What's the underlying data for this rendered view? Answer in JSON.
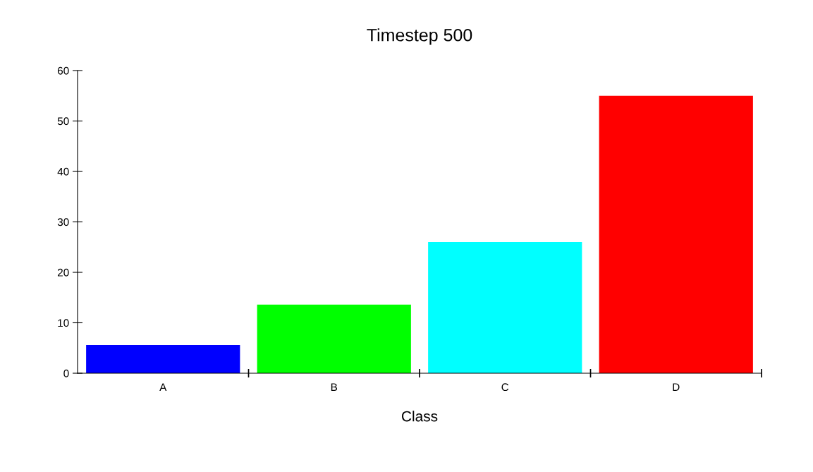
{
  "chart_data": {
    "type": "bar",
    "title": "Timestep 500",
    "xlabel": "Class",
    "categories": [
      "A",
      "B",
      "C",
      "D"
    ],
    "values": [
      5.6,
      13.6,
      26,
      55
    ],
    "colors": [
      "#0000ff",
      "#00ff00",
      "#00ffff",
      "#ff0000"
    ],
    "ylim": [
      0,
      60
    ],
    "yticks": [
      0,
      10,
      20,
      30,
      40,
      50,
      60
    ],
    "grid": false,
    "legend": false
  }
}
